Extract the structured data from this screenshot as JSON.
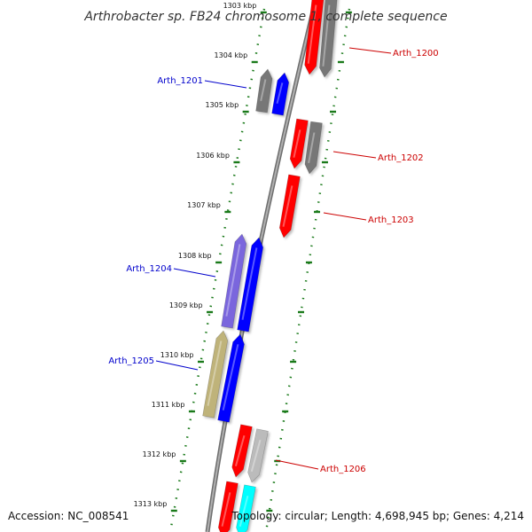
{
  "title": "Arthrobacter sp. FB24 chromosome 1, complete sequence",
  "footer": {
    "accession": "Accession: NC_008541",
    "topology": "Topology: circular; Length: 4,698,945 bp; Genes: 4,214"
  },
  "colors": {
    "forward_label": "#0000cc",
    "reverse_label": "#cc0000",
    "tick": "#1a7a1a",
    "backbone": "#888888"
  },
  "ticks": [
    "1303 kbp",
    "1304 kbp",
    "1305 kbp",
    "1306 kbp",
    "1307 kbp",
    "1308 kbp",
    "1309 kbp",
    "1310 kbp",
    "1311 kbp",
    "1312 kbp",
    "1313 kbp"
  ],
  "labels": [
    {
      "text": "Arth_1200",
      "strand": "reverse"
    },
    {
      "text": "Arth_1201",
      "strand": "forward"
    },
    {
      "text": "Arth_1202",
      "strand": "reverse"
    },
    {
      "text": "Arth_1203",
      "strand": "reverse"
    },
    {
      "text": "Arth_1204",
      "strand": "forward"
    },
    {
      "text": "Arth_1205",
      "strand": "forward"
    },
    {
      "text": "Arth_1206",
      "strand": "reverse"
    }
  ],
  "genes": [
    {
      "strand": "outer-reverse",
      "color": "#ff0000"
    },
    {
      "strand": "outer-reverse",
      "color": "#777777"
    },
    {
      "strand": "inner-forward",
      "color": "#777777"
    },
    {
      "strand": "inner-forward",
      "color": "#0000ff"
    },
    {
      "strand": "outer-reverse",
      "color": "#ff0000"
    },
    {
      "strand": "outer-reverse",
      "color": "#777777"
    },
    {
      "strand": "outer-reverse",
      "color": "#ff0000"
    },
    {
      "strand": "inner-forward",
      "color": "#7a66dd"
    },
    {
      "strand": "inner-forward",
      "color": "#0000ff"
    },
    {
      "strand": "inner-forward",
      "color": "#bfb37a"
    },
    {
      "strand": "inner-forward",
      "color": "#0000ff"
    },
    {
      "strand": "outer-reverse",
      "color": "#ff0000"
    },
    {
      "strand": "outer-reverse",
      "color": "#bbbbbb"
    },
    {
      "strand": "outer-reverse",
      "color": "#ff0000"
    },
    {
      "strand": "outer-reverse",
      "color": "#00ffff"
    }
  ]
}
